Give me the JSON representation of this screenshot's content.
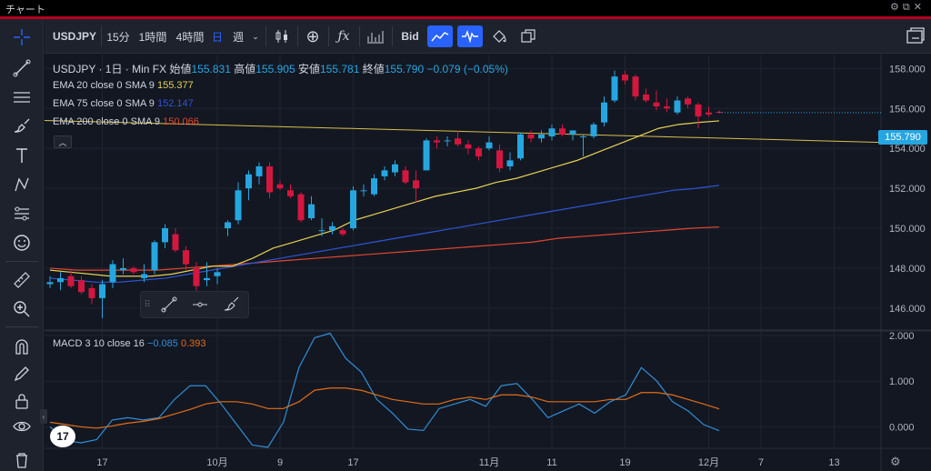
{
  "window": {
    "title": "チャート",
    "icons": [
      "gear-icon",
      "popout-icon",
      "close-icon"
    ]
  },
  "toolbar": {
    "symbol": "USDJPY",
    "intervals": [
      "15分",
      "1時間",
      "4時間"
    ],
    "day_button": "日",
    "week_button": "週",
    "bid_label": "Bid"
  },
  "legend": {
    "symbol_line": "USDJPY · 1日 · Min FX",
    "open_label": "始値",
    "open": "155.831",
    "high_label": "高値",
    "high": "155.905",
    "low_label": "安値",
    "low": "155.781",
    "close_label": "終値",
    "close": "155.790",
    "change": "−0.079 (−0.05%)",
    "ema20_label": "EMA 20 close 0 SMA 9",
    "ema20_value": "155.377",
    "ema75_label": "EMA 75 close 0 SMA 9",
    "ema75_value": "152.147",
    "ema200_label": "EMA 200 close 0 SMA 9",
    "ema200_value": "150.066",
    "macd_label": "MACD 3 10 close 16",
    "macd_value": "−0.085",
    "signal_value": "0.393"
  },
  "colors": {
    "up": "#26a6e0",
    "down": "#d3173f",
    "ema20": "#e5d152",
    "ema75": "#2e56d6",
    "ema200": "#e0462f",
    "macd": "#2f8fd6",
    "signal": "#e26d16",
    "trend": "#d8c04c",
    "price_label": "#26a6e0"
  },
  "price_label": "155.790",
  "chart_data": [
    {
      "type": "candlestick",
      "title": "USDJPY",
      "x_tick_labels": [
        "17",
        "10月",
        "9",
        "17",
        "11月",
        "11",
        "19",
        "12月",
        "7",
        "13"
      ],
      "y_ticks": [
        "158.000",
        "156.000",
        "154.000",
        "152.000",
        "150.000",
        "148.000",
        "146.000"
      ],
      "ylim": [
        144.9,
        158.7
      ],
      "candles": [
        [
          147.2,
          147.6,
          147.0,
          147.3
        ],
        [
          147.3,
          147.8,
          146.9,
          147.5
        ],
        [
          147.6,
          147.9,
          147.0,
          147.1
        ],
        [
          147.4,
          147.6,
          146.7,
          146.8
        ],
        [
          147.0,
          147.2,
          146.2,
          146.5
        ],
        [
          146.5,
          147.4,
          145.5,
          147.2
        ],
        [
          147.3,
          148.4,
          147.0,
          148.2
        ],
        [
          147.9,
          148.5,
          147.7,
          148.0
        ],
        [
          148.0,
          148.1,
          147.7,
          147.8
        ],
        [
          147.5,
          148.2,
          147.3,
          147.7
        ],
        [
          147.9,
          149.4,
          147.7,
          149.3
        ],
        [
          149.3,
          150.2,
          149.0,
          150.0
        ],
        [
          149.7,
          150.0,
          148.8,
          148.9
        ],
        [
          148.9,
          149.1,
          147.9,
          148.2
        ],
        [
          148.0,
          148.3,
          146.8,
          147.1
        ],
        [
          147.4,
          148.3,
          147.1,
          147.5
        ],
        [
          147.6,
          148.0,
          147.2,
          147.8
        ],
        [
          150.0,
          150.4,
          149.6,
          150.3
        ],
        [
          150.4,
          152.3,
          150.2,
          151.9
        ],
        [
          152.0,
          152.9,
          151.4,
          152.7
        ],
        [
          152.6,
          153.3,
          152.2,
          153.1
        ],
        [
          153.1,
          153.3,
          151.5,
          151.8
        ],
        [
          152.2,
          152.4,
          151.9,
          152.0
        ],
        [
          151.9,
          152.2,
          151.5,
          151.6
        ],
        [
          151.7,
          151.8,
          150.3,
          150.4
        ],
        [
          150.5,
          151.6,
          150.4,
          151.2
        ],
        [
          149.9,
          150.5,
          149.6,
          149.9
        ],
        [
          149.9,
          150.3,
          149.7,
          150.1
        ],
        [
          149.9,
          150.0,
          149.6,
          149.7
        ],
        [
          150.0,
          152.1,
          149.9,
          151.9
        ],
        [
          151.9,
          152.2,
          151.6,
          151.9
        ],
        [
          151.7,
          152.7,
          151.6,
          152.5
        ],
        [
          152.6,
          153.1,
          152.4,
          152.9
        ],
        [
          152.8,
          153.4,
          152.6,
          153.2
        ],
        [
          152.9,
          153.1,
          152.2,
          152.3
        ],
        [
          152.4,
          152.9,
          151.3,
          152.0
        ],
        [
          152.9,
          154.5,
          152.9,
          154.4
        ],
        [
          154.4,
          154.6,
          154.0,
          154.3
        ],
        [
          154.4,
          154.6,
          154.1,
          154.4
        ],
        [
          154.5,
          154.9,
          154.1,
          154.2
        ],
        [
          154.2,
          154.4,
          153.7,
          154.0
        ],
        [
          154.0,
          154.1,
          153.4,
          153.6
        ],
        [
          154.0,
          154.6,
          153.9,
          154.3
        ],
        [
          153.9,
          154.2,
          152.8,
          153.0
        ],
        [
          153.1,
          153.8,
          152.9,
          153.4
        ],
        [
          153.5,
          154.8,
          153.4,
          154.7
        ],
        [
          154.7,
          154.9,
          154.3,
          154.5
        ],
        [
          154.5,
          154.9,
          154.3,
          154.7
        ],
        [
          154.6,
          155.2,
          154.4,
          155.0
        ],
        [
          155.0,
          155.2,
          154.6,
          154.7
        ],
        [
          154.7,
          154.9,
          154.4,
          154.9
        ],
        [
          154.6,
          154.7,
          153.6,
          154.6
        ],
        [
          154.6,
          155.3,
          154.5,
          155.2
        ],
        [
          155.3,
          156.6,
          155.1,
          156.3
        ],
        [
          156.4,
          157.9,
          156.3,
          157.6
        ],
        [
          157.7,
          157.9,
          157.2,
          157.4
        ],
        [
          157.6,
          157.7,
          156.4,
          156.6
        ],
        [
          156.7,
          157.0,
          156.3,
          156.4
        ],
        [
          156.3,
          156.9,
          155.9,
          156.1
        ],
        [
          156.1,
          156.5,
          155.8,
          156.0
        ],
        [
          155.8,
          156.6,
          155.7,
          156.4
        ],
        [
          156.5,
          156.6,
          156.0,
          156.2
        ],
        [
          156.2,
          156.3,
          155.0,
          155.6
        ],
        [
          155.8,
          156.1,
          155.6,
          155.7
        ],
        [
          155.831,
          155.905,
          155.781,
          155.79
        ]
      ],
      "ema20": [
        147.9,
        147.8,
        147.7,
        147.6,
        147.6,
        147.6,
        147.7,
        147.9,
        148.1,
        148.1,
        148.5,
        149.0,
        149.3,
        149.6,
        149.9,
        150.4,
        150.7,
        151.0,
        151.3,
        151.6,
        151.8,
        152.0,
        152.3,
        152.5,
        152.8,
        153.1,
        153.4,
        153.8,
        154.2,
        154.6,
        155.0,
        155.2,
        155.3,
        155.377
      ],
      "ema75": [
        147.5,
        147.4,
        147.3,
        147.3,
        147.4,
        147.5,
        147.7,
        147.9,
        148.1,
        148.3,
        148.5,
        148.7,
        148.9,
        149.1,
        149.3,
        149.5,
        149.7,
        149.9,
        150.1,
        150.3,
        150.5,
        150.7,
        150.9,
        151.1,
        151.3,
        151.5,
        151.7,
        151.9,
        152.0,
        152.147
      ],
      "ema200": [
        148.0,
        147.9,
        147.9,
        147.9,
        147.9,
        148.0,
        148.1,
        148.2,
        148.3,
        148.4,
        148.5,
        148.6,
        148.7,
        148.8,
        148.9,
        149.0,
        149.1,
        149.2,
        149.3,
        149.5,
        149.6,
        149.7,
        149.8,
        149.9,
        150.0,
        150.066
      ],
      "trendline": [
        [
          0,
          155.4
        ],
        [
          999,
          154.3
        ]
      ]
    },
    {
      "type": "line",
      "title": "MACD 3 10 close 16",
      "y_ticks": [
        "2.000",
        "1.000",
        "0.000"
      ],
      "ylim": [
        -0.45,
        2.1
      ],
      "series": [
        {
          "name": "MACD",
          "values": [
            0.0,
            -0.3,
            -0.35,
            -0.28,
            0.15,
            0.2,
            0.15,
            0.2,
            0.6,
            0.9,
            0.9,
            0.5,
            0.05,
            -0.4,
            -0.45,
            0.1,
            1.3,
            1.95,
            2.05,
            1.5,
            1.2,
            0.6,
            0.3,
            -0.05,
            -0.08,
            0.4,
            0.5,
            0.6,
            0.45,
            0.9,
            0.95,
            0.6,
            0.2,
            0.35,
            0.5,
            0.3,
            0.55,
            0.7,
            1.3,
            1.0,
            0.55,
            0.35,
            0.05,
            -0.085
          ]
        },
        {
          "name": "Signal",
          "values": [
            0.1,
            0.05,
            0.0,
            -0.03,
            0.02,
            0.08,
            0.12,
            0.18,
            0.28,
            0.38,
            0.5,
            0.55,
            0.55,
            0.5,
            0.4,
            0.4,
            0.55,
            0.8,
            0.85,
            0.85,
            0.8,
            0.7,
            0.6,
            0.55,
            0.5,
            0.5,
            0.6,
            0.65,
            0.6,
            0.7,
            0.7,
            0.65,
            0.55,
            0.55,
            0.55,
            0.55,
            0.6,
            0.6,
            0.75,
            0.75,
            0.7,
            0.6,
            0.5,
            0.393
          ]
        }
      ]
    }
  ]
}
